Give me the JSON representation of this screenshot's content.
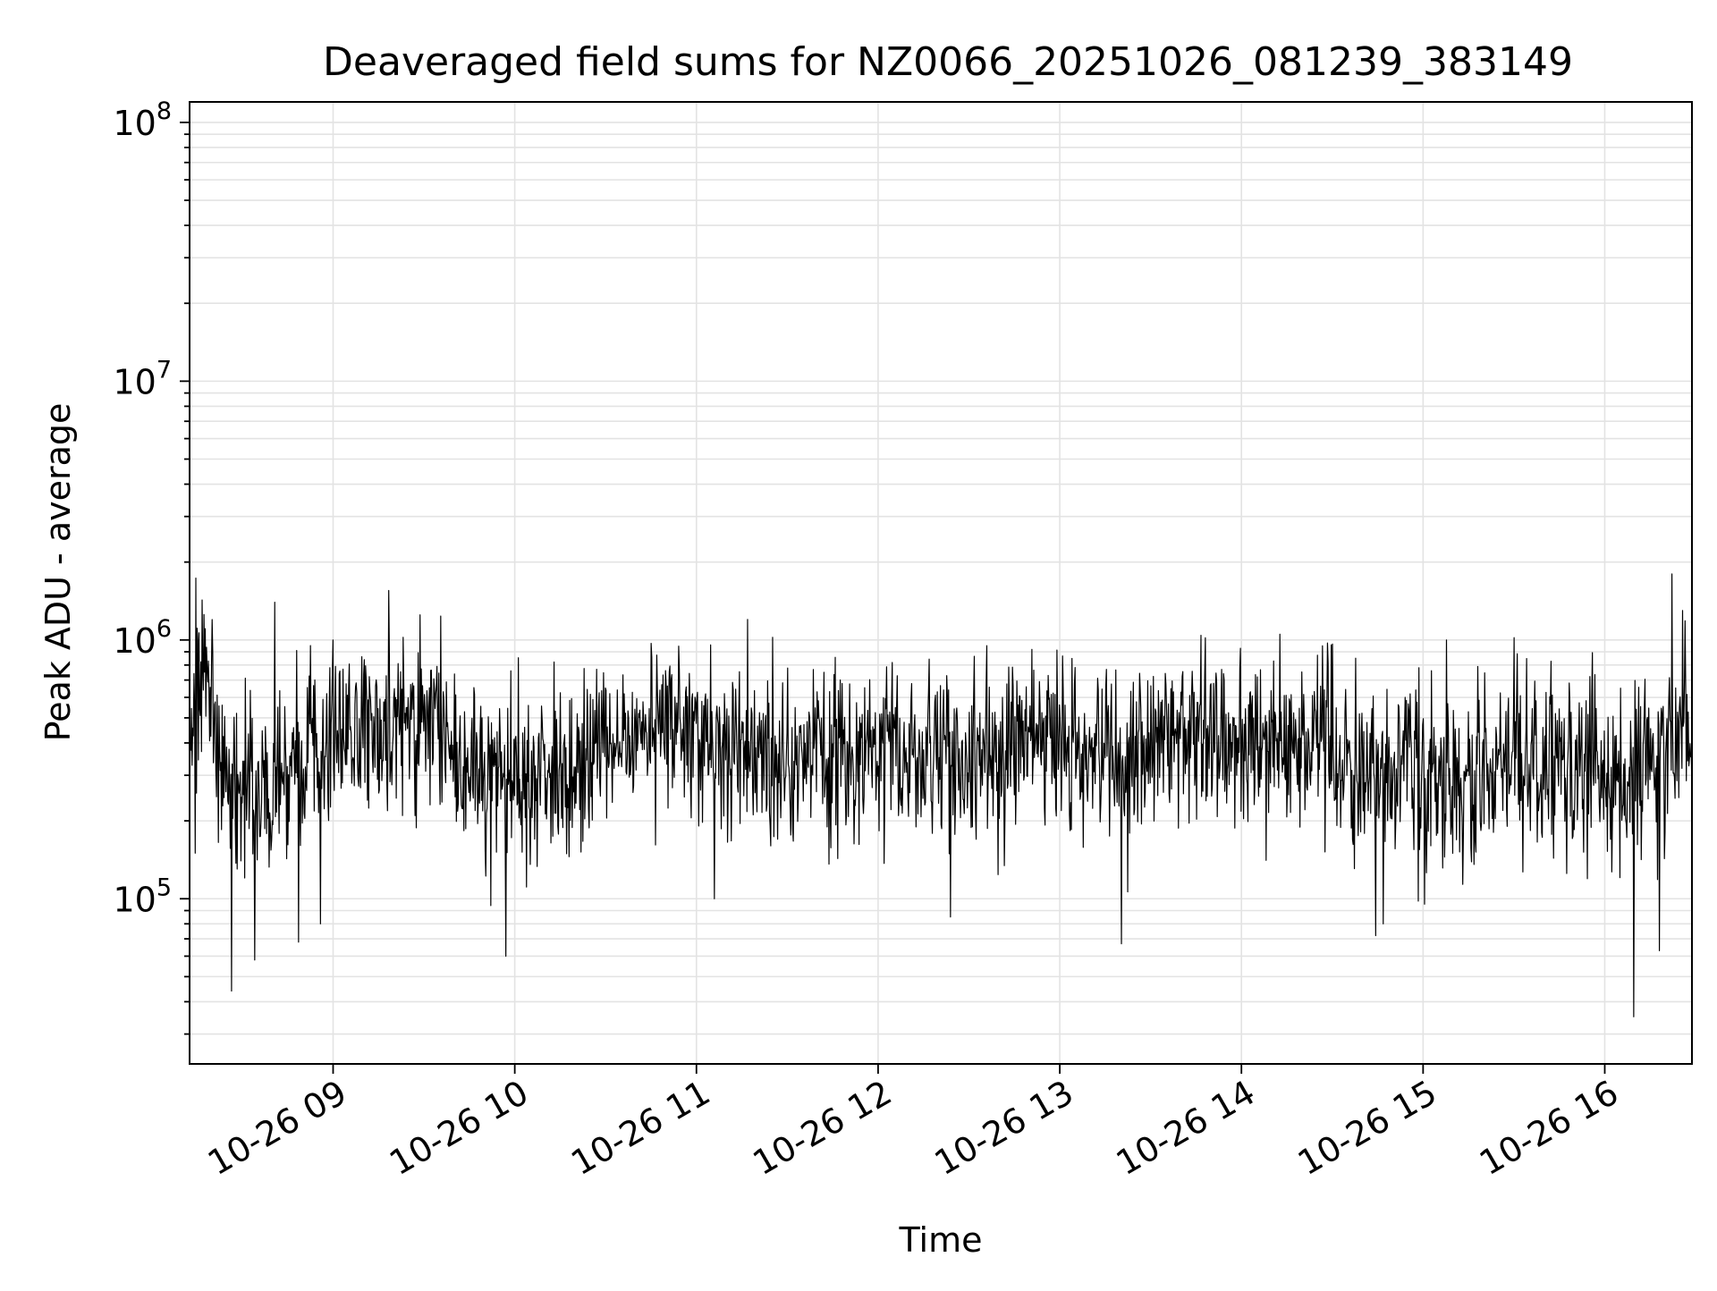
{
  "chart_data": {
    "type": "line",
    "title": "Deaveraged field sums for NZ0066_20251026_081239_383149",
    "xlabel": "Time",
    "ylabel": "Peak ADU - average",
    "yscale": "log",
    "ylim": [
      23000,
      120000000
    ],
    "xlim_hours": [
      8.21,
      16.48
    ],
    "x_ticks": [
      {
        "label": "10-26 09",
        "hour": 9
      },
      {
        "label": "10-26 10",
        "hour": 10
      },
      {
        "label": "10-26 11",
        "hour": 11
      },
      {
        "label": "10-26 12",
        "hour": 12
      },
      {
        "label": "10-26 13",
        "hour": 13
      },
      {
        "label": "10-26 14",
        "hour": 14
      },
      {
        "label": "10-26 15",
        "hour": 15
      },
      {
        "label": "10-26 16",
        "hour": 16
      }
    ],
    "y_ticks": [
      {
        "base": "10",
        "exp": "5",
        "value": 100000
      },
      {
        "base": "10",
        "exp": "6",
        "value": 1000000
      },
      {
        "base": "10",
        "exp": "7",
        "value": 10000000
      },
      {
        "base": "10",
        "exp": "8",
        "value": 100000000
      }
    ],
    "grid": true,
    "series": [
      {
        "name": "deaveraged field sum",
        "color": "#000000",
        "noise_sigma_log10": 0.17,
        "anchors": [
          {
            "hour": 8.21,
            "value": 300000
          },
          {
            "hour": 8.25,
            "value": 650000
          },
          {
            "hour": 8.32,
            "value": 700000
          },
          {
            "hour": 8.4,
            "value": 300000
          },
          {
            "hour": 8.6,
            "value": 270000
          },
          {
            "hour": 8.8,
            "value": 330000
          },
          {
            "hour": 9.0,
            "value": 420000
          },
          {
            "hour": 9.3,
            "value": 430000
          },
          {
            "hour": 9.55,
            "value": 450000
          },
          {
            "hour": 9.8,
            "value": 300000
          },
          {
            "hour": 10.0,
            "value": 280000
          },
          {
            "hour": 10.3,
            "value": 320000
          },
          {
            "hour": 10.6,
            "value": 400000
          },
          {
            "hour": 10.9,
            "value": 470000
          },
          {
            "hour": 11.2,
            "value": 380000
          },
          {
            "hour": 11.5,
            "value": 340000
          },
          {
            "hour": 11.9,
            "value": 380000
          },
          {
            "hour": 12.2,
            "value": 350000
          },
          {
            "hour": 12.5,
            "value": 330000
          },
          {
            "hour": 12.8,
            "value": 420000
          },
          {
            "hour": 13.1,
            "value": 380000
          },
          {
            "hour": 13.4,
            "value": 340000
          },
          {
            "hour": 13.7,
            "value": 450000
          },
          {
            "hour": 14.0,
            "value": 400000
          },
          {
            "hour": 14.2,
            "value": 380000
          },
          {
            "hour": 14.4,
            "value": 410000
          },
          {
            "hour": 14.6,
            "value": 300000
          },
          {
            "hour": 15.0,
            "value": 320000
          },
          {
            "hour": 15.3,
            "value": 300000
          },
          {
            "hour": 15.6,
            "value": 360000
          },
          {
            "hour": 15.9,
            "value": 330000
          },
          {
            "hour": 16.1,
            "value": 300000
          },
          {
            "hour": 16.3,
            "value": 350000
          },
          {
            "hour": 16.48,
            "value": 420000
          }
        ],
        "extremes": [
          {
            "hour": 8.24,
            "value": 150000
          },
          {
            "hour": 8.44,
            "value": 44000
          },
          {
            "hour": 8.57,
            "value": 58000
          },
          {
            "hour": 8.81,
            "value": 68000
          },
          {
            "hour": 8.8,
            "value": 910000
          },
          {
            "hour": 8.93,
            "value": 80000
          },
          {
            "hour": 9.0,
            "value": 1000000
          },
          {
            "hour": 9.31,
            "value": 880000
          },
          {
            "hour": 9.48,
            "value": 1250000
          },
          {
            "hour": 9.95,
            "value": 60000
          },
          {
            "hour": 9.98,
            "value": 760000
          },
          {
            "hour": 10.75,
            "value": 970000
          },
          {
            "hour": 11.1,
            "value": 100000
          },
          {
            "hour": 11.28,
            "value": 1200000
          },
          {
            "hour": 12.4,
            "value": 85000
          },
          {
            "hour": 12.6,
            "value": 950000
          },
          {
            "hour": 13.34,
            "value": 67000
          },
          {
            "hour": 13.8,
            "value": 1020000
          },
          {
            "hour": 14.74,
            "value": 72000
          },
          {
            "hour": 14.78,
            "value": 80000
          },
          {
            "hour": 15.13,
            "value": 1000000
          },
          {
            "hour": 16.16,
            "value": 35000
          },
          {
            "hour": 16.3,
            "value": 63000
          },
          {
            "hour": 16.37,
            "value": 1800000
          },
          {
            "hour": 16.43,
            "value": 1300000
          }
        ]
      }
    ]
  }
}
